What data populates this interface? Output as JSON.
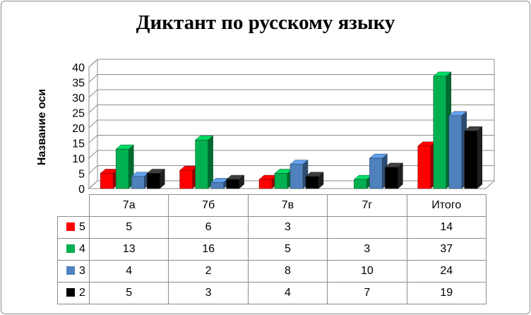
{
  "chart_data": {
    "type": "bar",
    "title": "Диктант по русскому языку",
    "ylabel": "Название оси",
    "xlabel": "",
    "categories": [
      "7а",
      "7б",
      "7в",
      "7г",
      "Итого"
    ],
    "ylim": [
      0,
      40
    ],
    "yticks": [
      "0",
      "5",
      "10",
      "15",
      "20",
      "25",
      "30",
      "35",
      "40"
    ],
    "grid": true,
    "legend": "data-table",
    "series": [
      {
        "name": "5",
        "color": "#ff0000",
        "values": [
          5,
          6,
          3,
          null,
          14
        ],
        "labels": [
          "5",
          "6",
          "3",
          "",
          "14"
        ]
      },
      {
        "name": "4",
        "color": "#00b050",
        "values": [
          13,
          16,
          5,
          3,
          37
        ],
        "labels": [
          "13",
          "16",
          "5",
          "3",
          "37"
        ]
      },
      {
        "name": "3",
        "color": "#4f81bd",
        "values": [
          4,
          2,
          8,
          10,
          24
        ],
        "labels": [
          "4",
          "2",
          "8",
          "10",
          "24"
        ]
      },
      {
        "name": "2",
        "color": "#000000",
        "values": [
          5,
          3,
          4,
          7,
          19
        ],
        "labels": [
          "5",
          "3",
          "4",
          "7",
          "19"
        ]
      }
    ]
  }
}
